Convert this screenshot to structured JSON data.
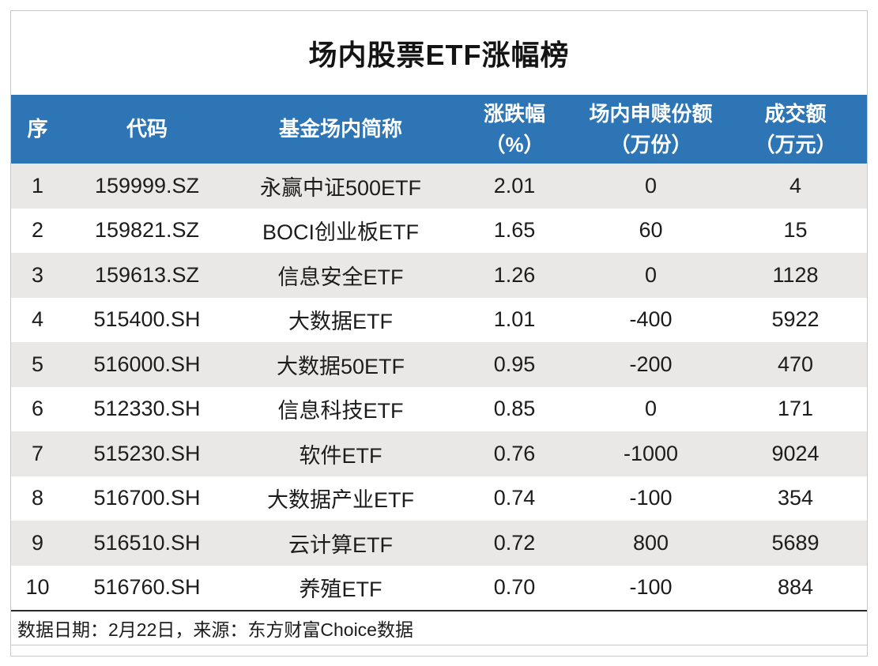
{
  "title": "场内股票ETF涨幅榜",
  "footer": {
    "note": "数据日期：2月22日，来源：东方财富Choice数据"
  },
  "colors": {
    "header_bg": "#2E75B6",
    "header_fg": "#FFFFFF",
    "row_alt_bg": "#E9E8E6",
    "text": "#1C1C1C",
    "border": "#C9C9C9",
    "footnote_border": "#2A2A2A"
  },
  "chart_data": {
    "type": "table",
    "title": "场内股票ETF涨幅榜",
    "columns": [
      {
        "label": "序",
        "sub": ""
      },
      {
        "label": "代码",
        "sub": ""
      },
      {
        "label": "基金场内简称",
        "sub": ""
      },
      {
        "label": "涨跌幅",
        "sub": "（%）"
      },
      {
        "label": "场内申赎份额",
        "sub": "（万份）"
      },
      {
        "label": "成交额",
        "sub": "（万元）"
      }
    ],
    "rows": [
      [
        "1",
        "159999.SZ",
        "永赢中证500ETF",
        "2.01",
        "0",
        "4"
      ],
      [
        "2",
        "159821.SZ",
        "BOCI创业板ETF",
        "1.65",
        "60",
        "15"
      ],
      [
        "3",
        "159613.SZ",
        "信息安全ETF",
        "1.26",
        "0",
        "1128"
      ],
      [
        "4",
        "515400.SH",
        "大数据ETF",
        "1.01",
        "-400",
        "5922"
      ],
      [
        "5",
        "516000.SH",
        "大数据50ETF",
        "0.95",
        "-200",
        "470"
      ],
      [
        "6",
        "512330.SH",
        "信息科技ETF",
        "0.85",
        "0",
        "171"
      ],
      [
        "7",
        "515230.SH",
        "软件ETF",
        "0.76",
        "-1000",
        "9024"
      ],
      [
        "8",
        "516700.SH",
        "大数据产业ETF",
        "0.74",
        "-100",
        "354"
      ],
      [
        "9",
        "516510.SH",
        "云计算ETF",
        "0.72",
        "800",
        "5689"
      ],
      [
        "10",
        "516760.SH",
        "养殖ETF",
        "0.70",
        "-100",
        "884"
      ]
    ],
    "source_note": "数据日期：2月22日，来源：东方财富Choice数据",
    "layout": {
      "striped": true,
      "stripe_on": "odd-rows",
      "header_position": "top"
    }
  }
}
